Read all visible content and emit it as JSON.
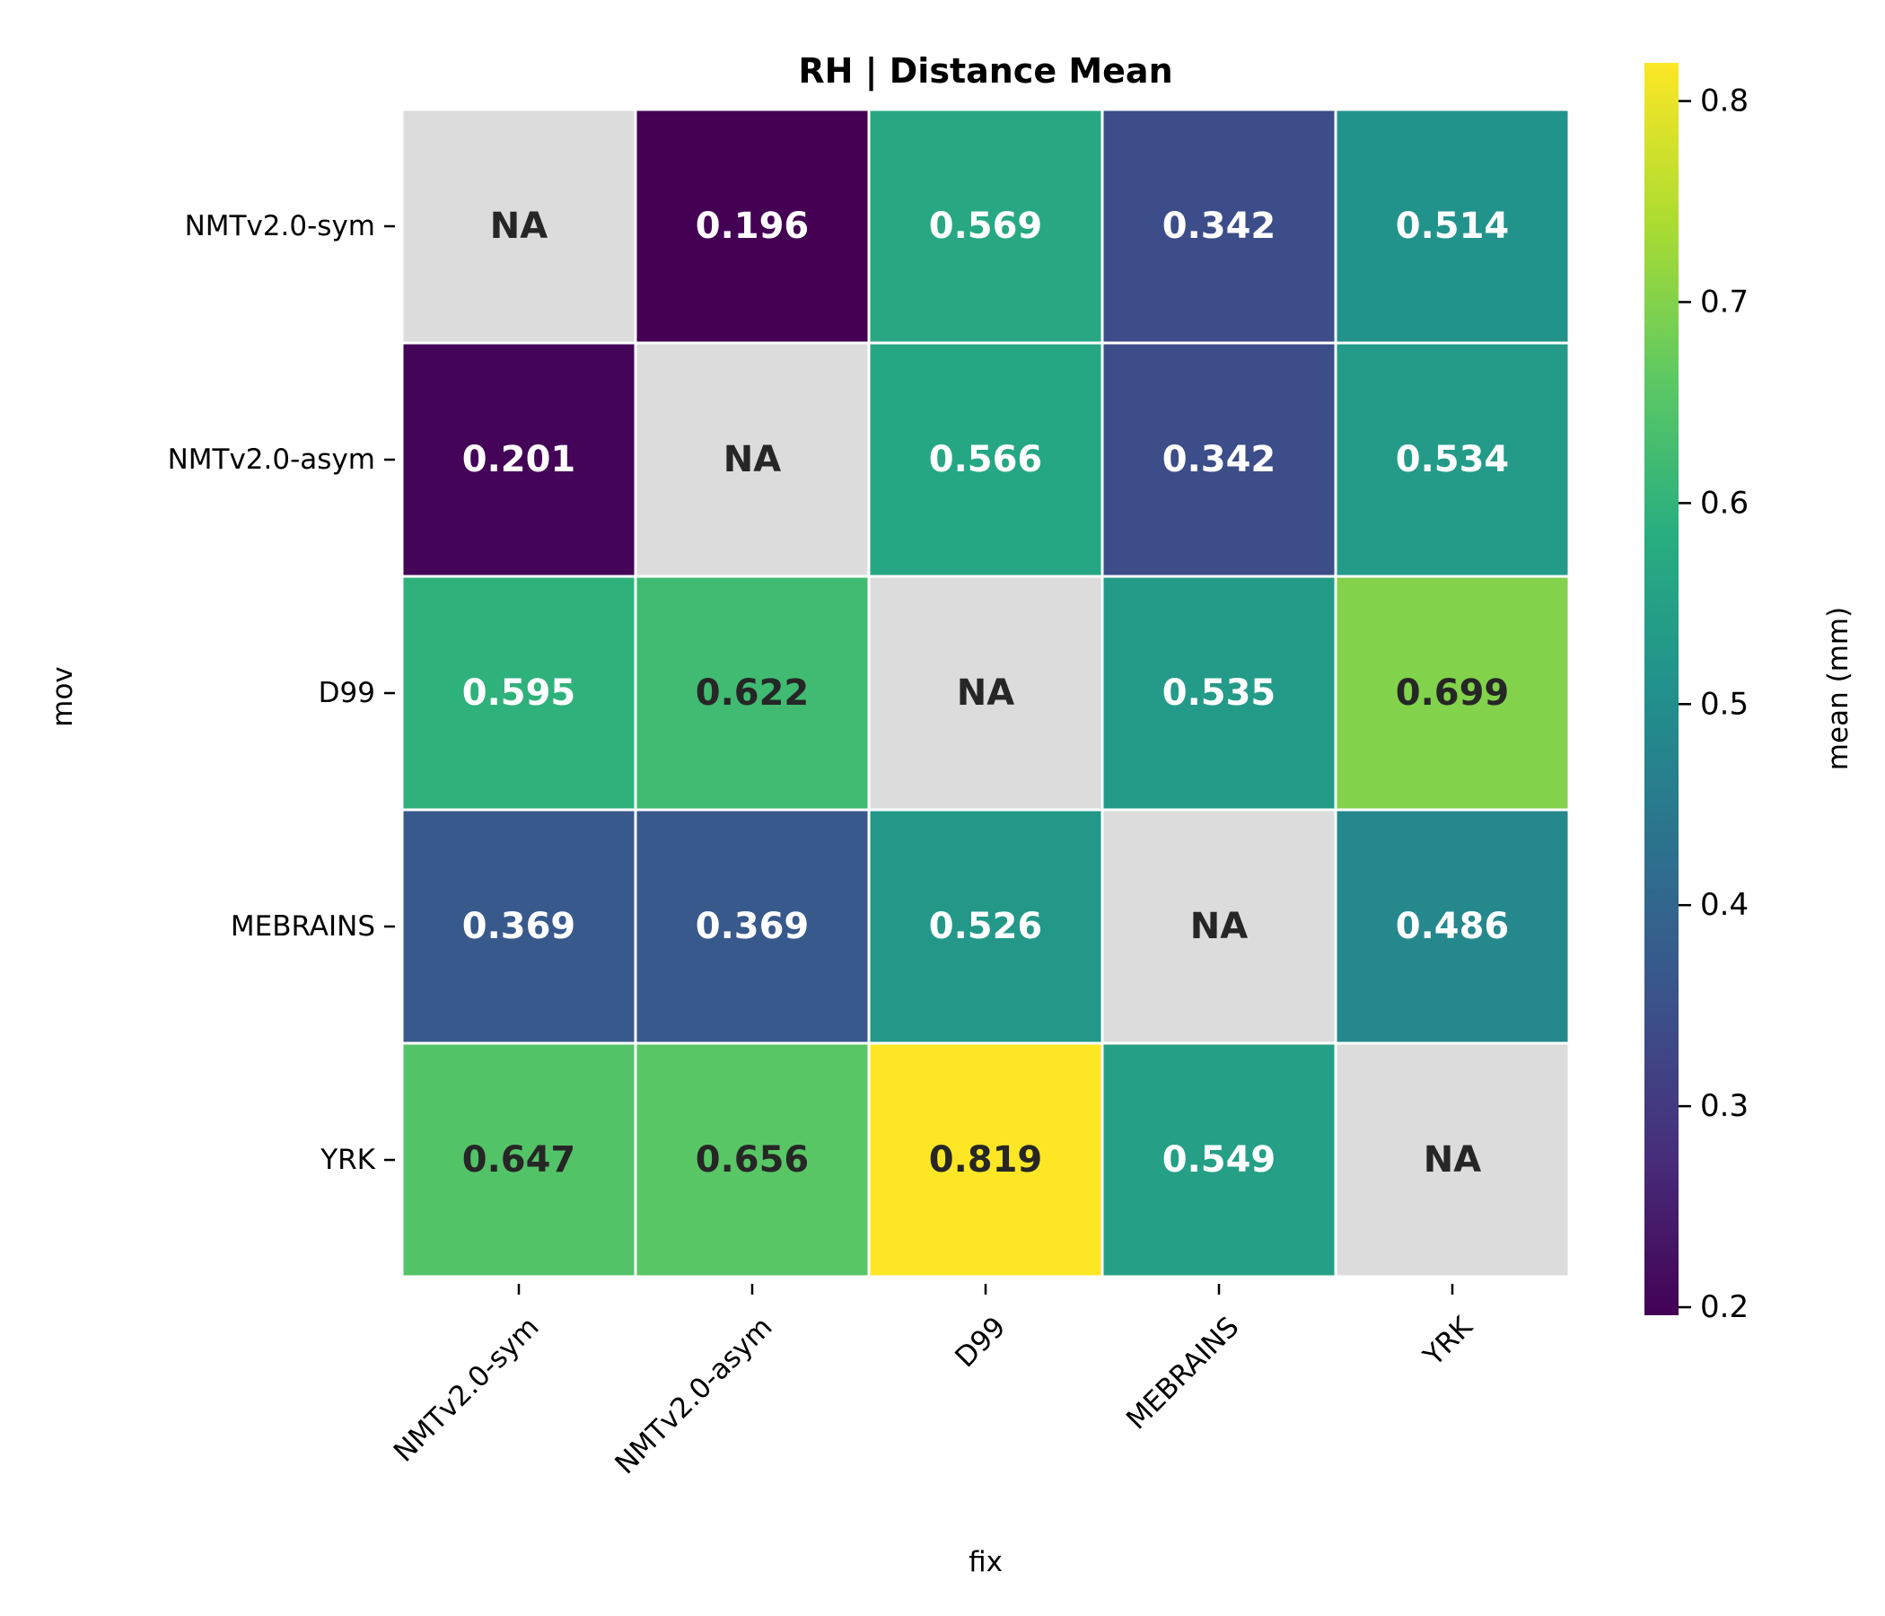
{
  "chart_data": {
    "type": "heatmap",
    "title": "RH | Distance Mean",
    "xlabel": "fix",
    "ylabel": "mov",
    "x_categories": [
      "NMTv2.0-sym",
      "NMTv2.0-asym",
      "D99",
      "MEBRAINS",
      "YRK"
    ],
    "y_categories": [
      "NMTv2.0-sym",
      "NMTv2.0-asym",
      "D99",
      "MEBRAINS",
      "YRK"
    ],
    "values": [
      [
        null,
        0.196,
        0.569,
        0.342,
        0.514
      ],
      [
        0.201,
        null,
        0.566,
        0.342,
        0.534
      ],
      [
        0.595,
        0.622,
        null,
        0.535,
        0.699
      ],
      [
        0.369,
        0.369,
        0.526,
        null,
        0.486
      ],
      [
        0.647,
        0.656,
        0.819,
        0.549,
        null
      ]
    ],
    "cell_labels": [
      [
        "NA",
        "0.196",
        "0.569",
        "0.342",
        "0.514"
      ],
      [
        "0.201",
        "NA",
        "0.566",
        "0.342",
        "0.534"
      ],
      [
        "0.595",
        "0.622",
        "NA",
        "0.535",
        "0.699"
      ],
      [
        "0.369",
        "0.369",
        "0.526",
        "NA",
        "0.486"
      ],
      [
        "0.647",
        "0.656",
        "0.819",
        "0.549",
        "NA"
      ]
    ],
    "missing_color": "#dcdcdc",
    "colormap": "viridis",
    "colorbar": {
      "label": "mean (mm)",
      "range": [
        0.196,
        0.819
      ],
      "ticks": [
        0.2,
        0.3,
        0.4,
        0.5,
        0.6,
        0.7,
        0.8
      ],
      "tick_labels": [
        "0.2",
        "0.3",
        "0.4",
        "0.5",
        "0.6",
        "0.7",
        "0.8"
      ],
      "placement": "right"
    },
    "label_colors": {
      "light": "#ffffff",
      "dark": "#262626"
    }
  }
}
